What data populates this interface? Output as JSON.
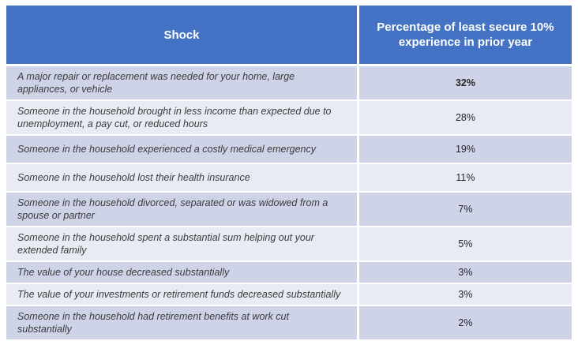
{
  "table": {
    "columns": [
      {
        "label": "Shock"
      },
      {
        "label": "Percentage of least secure 10% experience in prior year"
      }
    ],
    "rows": [
      {
        "shock": "A major repair or replacement was needed for your home, large appliances, or vehicle",
        "value": "32%"
      },
      {
        "shock": "Someone in the household brought in less income than expected due to unemployment, a pay cut, or reduced hours",
        "value": "28%"
      },
      {
        "shock": "Someone in the household experienced a costly medical emergency",
        "value": "19%"
      },
      {
        "shock": "Someone in the household lost their health insurance",
        "value": "11%"
      },
      {
        "shock": "Someone in the household divorced, separated or was widowed from a spouse or partner",
        "value": "7%"
      },
      {
        "shock": "Someone in the household spent a substantial sum helping out your extended family",
        "value": "5%"
      },
      {
        "shock": "The value of your house decreased substantially",
        "value": "3%"
      },
      {
        "shock": "The value of your investments or retirement funds decreased substantially",
        "value": "3%"
      },
      {
        "shock": "Someone in the household had retirement benefits at work cut substantially",
        "value": "2%"
      }
    ]
  },
  "colors": {
    "header_bg": "#4472C4",
    "header_text": "#FFFFFF",
    "band_dark": "#CED3E8",
    "band_light": "#E9EBF4",
    "body_text": "#3B3B3B",
    "value_text": "#262626"
  },
  "chart_data": {
    "type": "table",
    "title": "",
    "columns": [
      "Shock",
      "Percentage of least secure 10% experience in prior year"
    ],
    "categories": [
      "A major repair or replacement was needed for your home, large appliances, or vehicle",
      "Someone in the household brought in less income than expected due to unemployment, a pay cut, or reduced hours",
      "Someone in the household experienced a costly medical emergency",
      "Someone in the household lost their health insurance",
      "Someone in the household divorced, separated or was widowed from a spouse or partner",
      "Someone in the household spent a substantial sum helping out your extended family",
      "The value of your house decreased substantially",
      "The value of your investments or retirement funds decreased substantially",
      "Someone in the household had retirement benefits at work cut substantially"
    ],
    "values": [
      32,
      28,
      19,
      11,
      7,
      5,
      3,
      3,
      2
    ],
    "unit": "%",
    "layout_hints": {
      "banded_rows": true,
      "header_style": "solid-blue",
      "value_column_align": "center"
    }
  }
}
